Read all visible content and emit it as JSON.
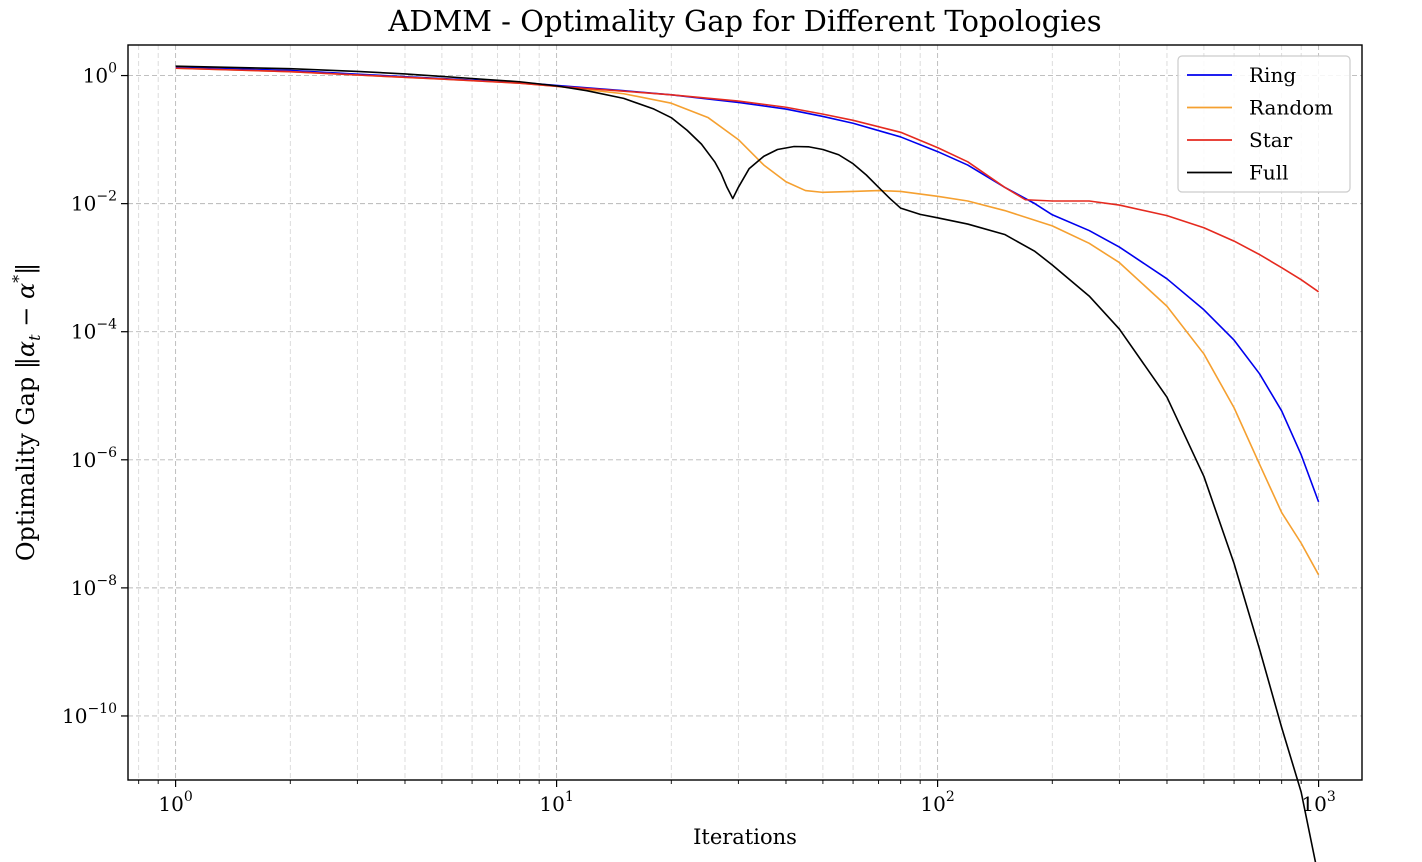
{
  "chart_data": {
    "type": "line",
    "title": "ADMM - Optimality Gap for Different Topologies",
    "xlabel": "Iterations",
    "ylabel": "Optimality Gap ‖α_t − α*‖",
    "x_scale": "log",
    "y_scale": "log",
    "xlim": [
      0.75,
      1300
    ],
    "ylim": [
      1e-11,
      3
    ],
    "x_ticks": [
      {
        "value": 1,
        "base": "10",
        "exp": "0"
      },
      {
        "value": 10,
        "base": "10",
        "exp": "1"
      },
      {
        "value": 100,
        "base": "10",
        "exp": "2"
      },
      {
        "value": 1000,
        "base": "10",
        "exp": "3"
      }
    ],
    "y_ticks": [
      {
        "value": 1,
        "base": "10",
        "exp": "0"
      },
      {
        "value": 0.01,
        "base": "10",
        "exp": "−2"
      },
      {
        "value": 0.0001,
        "base": "10",
        "exp": "−4"
      },
      {
        "value": 1e-06,
        "base": "10",
        "exp": "−6"
      },
      {
        "value": 1e-08,
        "base": "10",
        "exp": "−8"
      },
      {
        "value": 1e-10,
        "base": "10",
        "exp": "−10"
      }
    ],
    "grid": true,
    "legend_position": "top-right",
    "series": [
      {
        "name": "Ring",
        "color": "#0000ee",
        "points": [
          [
            1,
            1.35
          ],
          [
            2,
            1.2
          ],
          [
            3,
            1.05
          ],
          [
            5,
            0.9
          ],
          [
            8,
            0.78
          ],
          [
            10,
            0.7
          ],
          [
            15,
            0.58
          ],
          [
            20,
            0.5
          ],
          [
            30,
            0.38
          ],
          [
            40,
            0.3
          ],
          [
            50,
            0.23
          ],
          [
            60,
            0.18
          ],
          [
            80,
            0.11
          ],
          [
            100,
            0.065
          ],
          [
            120,
            0.04
          ],
          [
            150,
            0.018
          ],
          [
            180,
            0.01
          ],
          [
            200,
            0.0067
          ],
          [
            250,
            0.0038
          ],
          [
            300,
            0.0021
          ],
          [
            400,
            0.00067
          ],
          [
            500,
            0.00022
          ],
          [
            600,
            7.4e-05
          ],
          [
            700,
            2.2e-05
          ],
          [
            800,
            5.8e-06
          ],
          [
            900,
            1.2e-06
          ],
          [
            1000,
            2.2e-07
          ]
        ]
      },
      {
        "name": "Random",
        "color": "#f5a030",
        "points": [
          [
            1,
            1.3
          ],
          [
            2,
            1.15
          ],
          [
            3,
            1.02
          ],
          [
            5,
            0.88
          ],
          [
            8,
            0.76
          ],
          [
            10,
            0.68
          ],
          [
            15,
            0.52
          ],
          [
            20,
            0.37
          ],
          [
            25,
            0.22
          ],
          [
            30,
            0.1
          ],
          [
            35,
            0.04
          ],
          [
            40,
            0.022
          ],
          [
            45,
            0.016
          ],
          [
            50,
            0.015
          ],
          [
            60,
            0.0155
          ],
          [
            70,
            0.016
          ],
          [
            80,
            0.0155
          ],
          [
            100,
            0.013
          ],
          [
            120,
            0.011
          ],
          [
            150,
            0.0078
          ],
          [
            200,
            0.0045
          ],
          [
            250,
            0.0024
          ],
          [
            300,
            0.0012
          ],
          [
            400,
            0.00025
          ],
          [
            500,
            4.5e-05
          ],
          [
            600,
            6.5e-06
          ],
          [
            700,
            8.5e-07
          ],
          [
            800,
            1.5e-07
          ],
          [
            900,
            5e-08
          ],
          [
            1000,
            1.6e-08
          ]
        ]
      },
      {
        "name": "Star",
        "color": "#e52a1f",
        "points": [
          [
            1,
            1.3
          ],
          [
            2,
            1.15
          ],
          [
            3,
            1.02
          ],
          [
            5,
            0.88
          ],
          [
            8,
            0.76
          ],
          [
            10,
            0.68
          ],
          [
            15,
            0.57
          ],
          [
            20,
            0.5
          ],
          [
            30,
            0.4
          ],
          [
            40,
            0.32
          ],
          [
            50,
            0.25
          ],
          [
            60,
            0.2
          ],
          [
            80,
            0.13
          ],
          [
            100,
            0.075
          ],
          [
            120,
            0.045
          ],
          [
            150,
            0.018
          ],
          [
            170,
            0.0115
          ],
          [
            200,
            0.011
          ],
          [
            250,
            0.011
          ],
          [
            300,
            0.0095
          ],
          [
            400,
            0.0065
          ],
          [
            500,
            0.0042
          ],
          [
            600,
            0.0026
          ],
          [
            700,
            0.0016
          ],
          [
            800,
            0.001
          ],
          [
            900,
            0.00065
          ],
          [
            1000,
            0.00042
          ]
        ]
      },
      {
        "name": "Full",
        "color": "#000000",
        "points": [
          [
            1,
            1.4
          ],
          [
            2,
            1.28
          ],
          [
            3,
            1.16
          ],
          [
            4,
            1.06
          ],
          [
            5,
            0.97
          ],
          [
            6,
            0.9
          ],
          [
            8,
            0.8
          ],
          [
            10,
            0.69
          ],
          [
            12,
            0.58
          ],
          [
            15,
            0.44
          ],
          [
            18,
            0.3
          ],
          [
            20,
            0.22
          ],
          [
            22,
            0.14
          ],
          [
            24,
            0.085
          ],
          [
            26,
            0.045
          ],
          [
            27,
            0.03
          ],
          [
            28,
            0.018
          ],
          [
            29,
            0.012
          ],
          [
            30,
            0.018
          ],
          [
            32,
            0.035
          ],
          [
            35,
            0.055
          ],
          [
            38,
            0.07
          ],
          [
            42,
            0.078
          ],
          [
            46,
            0.077
          ],
          [
            50,
            0.07
          ],
          [
            55,
            0.058
          ],
          [
            60,
            0.042
          ],
          [
            65,
            0.028
          ],
          [
            70,
            0.018
          ],
          [
            75,
            0.012
          ],
          [
            80,
            0.0085
          ],
          [
            90,
            0.0068
          ],
          [
            100,
            0.006
          ],
          [
            120,
            0.0048
          ],
          [
            150,
            0.0033
          ],
          [
            180,
            0.0018
          ],
          [
            200,
            0.0011
          ],
          [
            250,
            0.00036
          ],
          [
            300,
            0.00011
          ],
          [
            400,
            9.5e-06
          ],
          [
            500,
            5.5e-07
          ],
          [
            600,
            2.4e-08
          ],
          [
            700,
            1.1e-09
          ],
          [
            800,
            6.6e-11
          ],
          [
            900,
            6.5e-12
          ],
          [
            1000,
            3e-13
          ]
        ]
      }
    ]
  }
}
